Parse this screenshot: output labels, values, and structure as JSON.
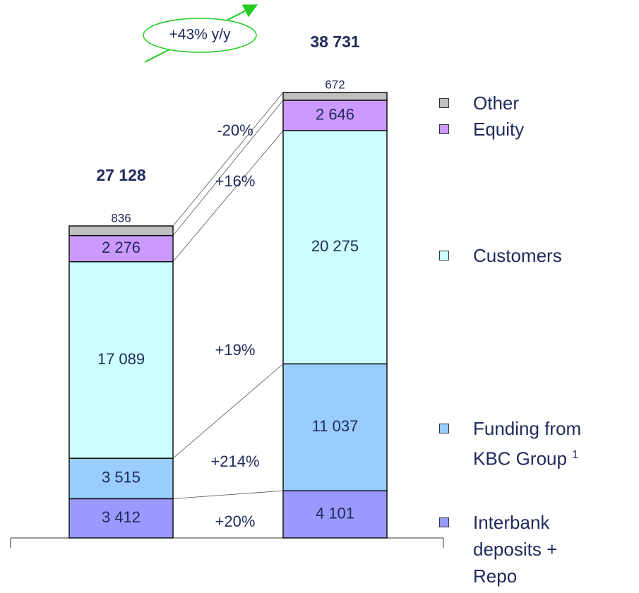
{
  "chart_data": {
    "type": "stacked_bar",
    "categories": [
      null,
      null
    ],
    "series": [
      {
        "name": "Interbank deposits + Repo",
        "color": "#9999ff",
        "values": [
          3412,
          4101
        ],
        "value_labels": [
          "3 412",
          "4 101"
        ]
      },
      {
        "name": "Funding from KBC Group",
        "color": "#99ccff",
        "values": [
          3515,
          11037
        ],
        "value_labels": [
          "3 515",
          "11 037"
        ]
      },
      {
        "name": "Customers",
        "color": "#ccffff",
        "values": [
          17089,
          20275
        ],
        "value_labels": [
          "17 089",
          "20 275"
        ]
      },
      {
        "name": "Equity",
        "color": "#cc99ff",
        "values": [
          2276,
          2646
        ],
        "value_labels": [
          "2 276",
          "2 646"
        ]
      },
      {
        "name": "Other",
        "color": "#c0c0c0",
        "values": [
          836,
          672
        ],
        "value_labels": [
          "836",
          "672"
        ]
      }
    ],
    "totals": [
      27128,
      38731
    ],
    "total_labels": [
      "27 128",
      "38 731"
    ],
    "changes": [
      "+20%",
      "+214%",
      "+19%",
      "+16%",
      "-20%"
    ],
    "footnote_mark": "1",
    "footnote_series": 1,
    "annotation": "+43% y/y"
  }
}
